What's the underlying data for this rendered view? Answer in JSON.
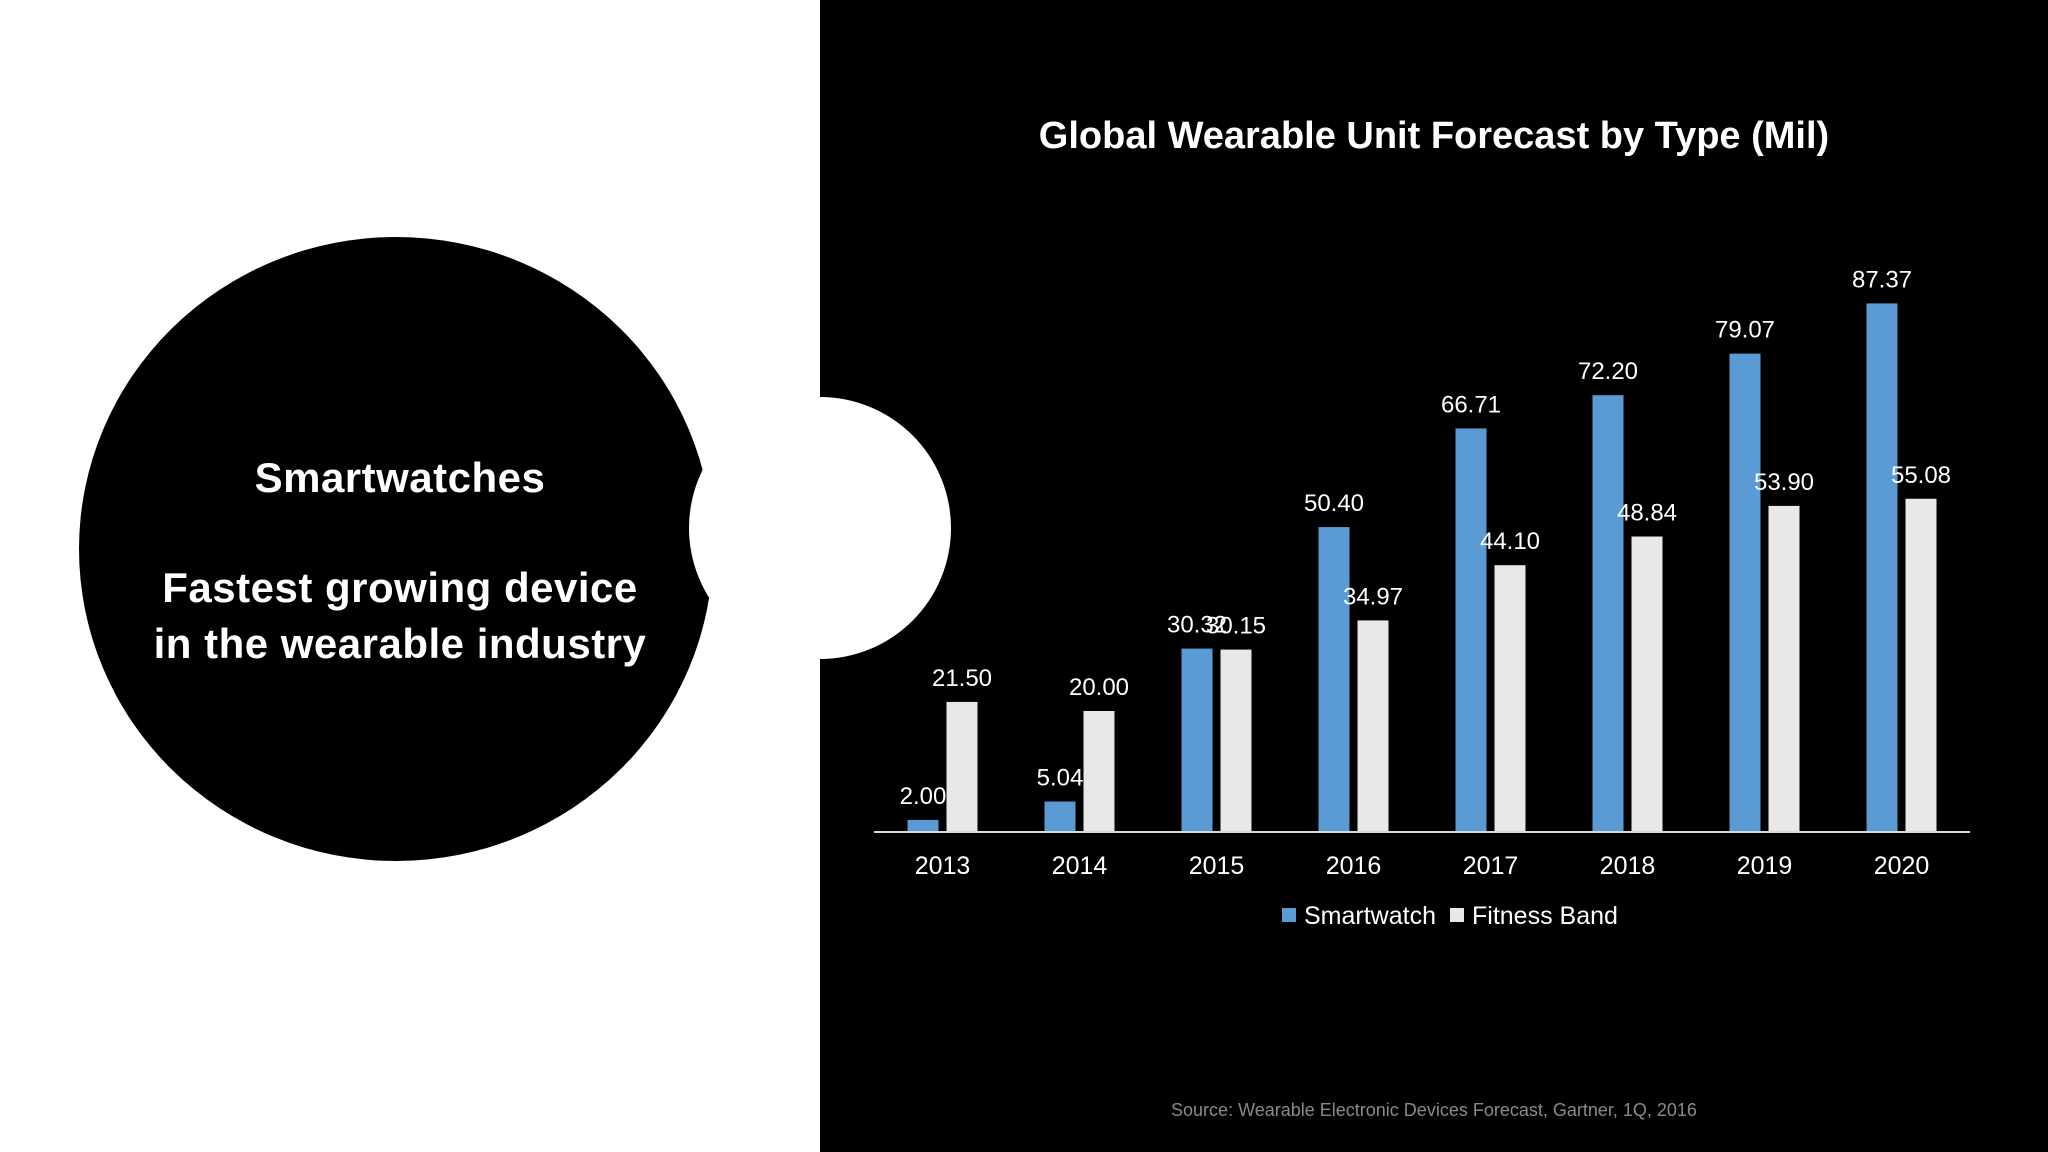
{
  "left": {
    "heading": "Smartwatches",
    "tagline": "Fastest growing device\nin the wearable industry"
  },
  "colors": {
    "smartwatch": "#5b9bd5",
    "fitness_band": "#e8e8e8",
    "background": "#000000"
  },
  "chart_data": {
    "type": "bar",
    "title": "Global Wearable Unit Forecast by Type (Mil)",
    "categories": [
      "2013",
      "2014",
      "2015",
      "2016",
      "2017",
      "2018",
      "2019",
      "2020"
    ],
    "series": [
      {
        "name": "Smartwatch",
        "values": [
          2.0,
          5.04,
          30.32,
          50.4,
          66.71,
          72.2,
          79.07,
          87.37
        ]
      },
      {
        "name": "Fitness Band",
        "values": [
          21.5,
          20.0,
          30.15,
          34.97,
          44.1,
          48.84,
          53.9,
          55.08
        ]
      }
    ],
    "value_labels": {
      "Smartwatch": [
        "2.00",
        "5.04",
        "30.32",
        "50.40",
        "66.71",
        "72.20",
        "79.07",
        "87.37"
      ],
      "Fitness Band": [
        "21.50",
        "20.00",
        "30.15",
        "34.97",
        "44.10",
        "48.84",
        "53.90",
        "55.08"
      ]
    },
    "xlabel": "",
    "ylabel": "",
    "ylim": [
      0,
      90
    ],
    "grid": false,
    "legend": "bottom",
    "source": "Source: Wearable Electronic Devices Forecast, Gartner, 1Q, 2016"
  }
}
